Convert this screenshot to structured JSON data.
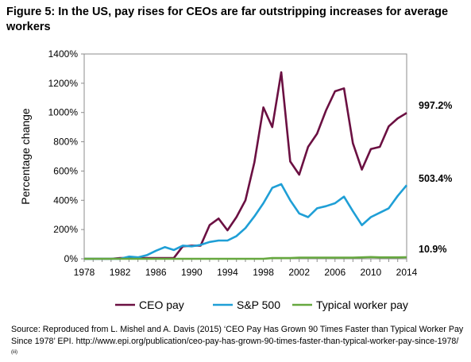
{
  "figure": {
    "title": "Figure 5: In the US, pay rises for CEOs are far outstripping increases for average workers",
    "source_main": "Source: Reproduced from L. Mishel and A. Davis (2015) ‘CEO Pay Has Grown 90 Times Faster than Typical Worker Pay Since 1978’ EPI. http://www.epi.org/publication/ceo-pay-has-grown-90-times-faster-than-typical-worker-pay-since-1978/",
    "source_note": "(iii)"
  },
  "chart_data": {
    "type": "line",
    "title": "",
    "xlabel": "",
    "ylabel": "Percentage change",
    "x": [
      1978,
      1979,
      1980,
      1981,
      1982,
      1983,
      1984,
      1985,
      1986,
      1987,
      1988,
      1989,
      1990,
      1991,
      1992,
      1993,
      1994,
      1995,
      1996,
      1997,
      1998,
      1999,
      2000,
      2001,
      2002,
      2003,
      2004,
      2005,
      2006,
      2007,
      2008,
      2009,
      2010,
      2011,
      2012,
      2013,
      2014
    ],
    "xlim": [
      1978,
      2014
    ],
    "ylim": [
      0,
      1400
    ],
    "x_ticks": [
      "1978",
      "1982",
      "1986",
      "1990",
      "1994",
      "1998",
      "2002",
      "2006",
      "2010",
      "2014"
    ],
    "x_tick_values": [
      1978,
      1982,
      1986,
      1990,
      1994,
      1998,
      2002,
      2006,
      2010,
      2014
    ],
    "y_ticks": [
      "0%",
      "200%",
      "400%",
      "600%",
      "800%",
      "1000%",
      "1200%",
      "1400%"
    ],
    "y_tick_values": [
      0,
      200,
      400,
      600,
      800,
      1000,
      1200,
      1400
    ],
    "grid": false,
    "legend_position": "bottom",
    "series": [
      {
        "name": "CEO pay",
        "color": "#6b1042",
        "end_label": "997.2%",
        "values": [
          0,
          0,
          0,
          0,
          5,
          5,
          5,
          5,
          5,
          5,
          5,
          85,
          90,
          90,
          230,
          275,
          195,
          285,
          400,
          660,
          1035,
          900,
          1275,
          665,
          575,
          765,
          855,
          1015,
          1145,
          1165,
          790,
          610,
          750,
          765,
          905,
          960,
          997
        ]
      },
      {
        "name": "S&P 500",
        "color": "#1f9fd6",
        "end_label": "503.4%",
        "values": [
          0,
          0,
          0,
          0,
          0,
          15,
          10,
          25,
          55,
          80,
          60,
          90,
          85,
          95,
          115,
          125,
          125,
          155,
          210,
          290,
          380,
          485,
          510,
          400,
          310,
          285,
          345,
          360,
          380,
          425,
          325,
          230,
          285,
          315,
          345,
          430,
          503
        ]
      },
      {
        "name": "Typical worker pay",
        "color": "#66a83f",
        "end_label": "10.9%",
        "values": [
          0,
          0,
          0,
          0,
          0,
          0,
          0,
          0,
          0,
          0,
          0,
          0,
          0,
          0,
          0,
          0,
          0,
          0,
          0,
          0,
          0,
          5,
          5,
          5,
          8,
          8,
          8,
          8,
          8,
          8,
          8,
          10,
          12,
          10,
          10,
          10,
          10.9
        ]
      }
    ]
  }
}
